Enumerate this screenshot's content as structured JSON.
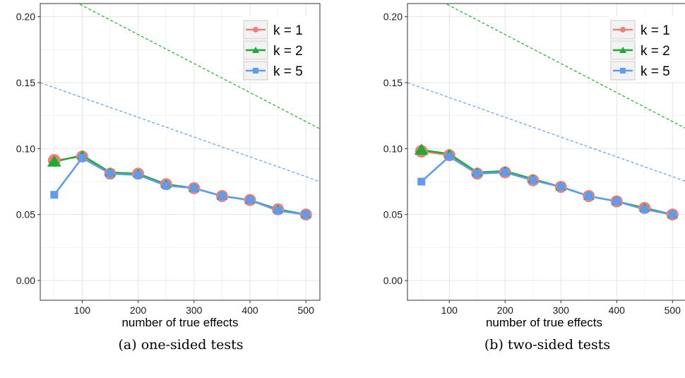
{
  "colors": {
    "k1": "#F07F7A",
    "k2": "#1AAE2E",
    "k5": "#5F9CF0",
    "grid_major": "#e4e4e4",
    "grid_minor": "#f3f3f3",
    "frame": "#333333"
  },
  "legend": [
    "k = 1",
    "k = 2",
    "k = 5"
  ],
  "chart_data": [
    {
      "type": "line",
      "caption": "(a) one-sided tests",
      "xlabel": "number of true effects",
      "ylabel": "",
      "xlim": [
        25,
        525
      ],
      "ylim": [
        -0.015,
        0.21
      ],
      "xticks": [
        100,
        200,
        300,
        400,
        500
      ],
      "yticks": [
        0.0,
        0.05,
        0.1,
        0.15,
        0.2
      ],
      "xtick_labels": [
        "100",
        "200",
        "300",
        "400",
        "500"
      ],
      "ytick_labels": [
        "0.00",
        "0.05",
        "0.10",
        "0.15",
        "0.20"
      ],
      "grid": true,
      "legend_position": "top-right",
      "x": [
        50,
        100,
        150,
        200,
        250,
        300,
        350,
        400,
        450,
        500
      ],
      "series": [
        {
          "name": "k = 1",
          "marker": "circle",
          "values": [
            0.091,
            0.094,
            0.081,
            0.081,
            0.073,
            0.07,
            0.064,
            0.061,
            0.054,
            0.05
          ]
        },
        {
          "name": "k = 2",
          "marker": "triangle",
          "values": [
            0.09,
            0.095,
            0.082,
            0.081,
            0.073,
            0.07,
            0.064,
            0.061,
            0.054,
            0.05
          ]
        },
        {
          "name": "k = 5",
          "marker": "square",
          "values": [
            0.065,
            0.093,
            0.081,
            0.08,
            0.072,
            0.07,
            0.064,
            0.061,
            0.053,
            0.05
          ]
        }
      ],
      "reference_lines": [
        {
          "color_key": "k2",
          "x": [
            25,
            525
          ],
          "y": [
            0.225,
            0.115
          ]
        },
        {
          "color_key": "k5",
          "x": [
            25,
            525
          ],
          "y": [
            0.15,
            0.075
          ]
        }
      ]
    },
    {
      "type": "line",
      "caption": "(b) two-sided tests",
      "xlabel": "number of true effects",
      "ylabel": "",
      "xlim": [
        25,
        525
      ],
      "ylim": [
        -0.015,
        0.21
      ],
      "xticks": [
        100,
        200,
        300,
        400,
        500
      ],
      "yticks": [
        0.0,
        0.05,
        0.1,
        0.15,
        0.2
      ],
      "xtick_labels": [
        "100",
        "200",
        "300",
        "400",
        "500"
      ],
      "ytick_labels": [
        "0.00",
        "0.05",
        "0.10",
        "0.15",
        "0.20"
      ],
      "grid": true,
      "legend_position": "top-right",
      "x": [
        50,
        100,
        150,
        200,
        250,
        300,
        350,
        400,
        450,
        500
      ],
      "series": [
        {
          "name": "k = 1",
          "marker": "circle",
          "values": [
            0.098,
            0.095,
            0.081,
            0.082,
            0.076,
            0.071,
            0.064,
            0.06,
            0.055,
            0.05
          ]
        },
        {
          "name": "k = 2",
          "marker": "triangle",
          "values": [
            0.099,
            0.096,
            0.082,
            0.083,
            0.077,
            0.071,
            0.064,
            0.06,
            0.055,
            0.05
          ]
        },
        {
          "name": "k = 5",
          "marker": "square",
          "values": [
            0.075,
            0.094,
            0.081,
            0.082,
            0.076,
            0.071,
            0.064,
            0.06,
            0.054,
            0.05
          ]
        }
      ],
      "reference_lines": [
        {
          "color_key": "k2",
          "x": [
            25,
            525
          ],
          "y": [
            0.225,
            0.115
          ]
        },
        {
          "color_key": "k5",
          "x": [
            25,
            525
          ],
          "y": [
            0.15,
            0.075
          ]
        }
      ]
    }
  ]
}
